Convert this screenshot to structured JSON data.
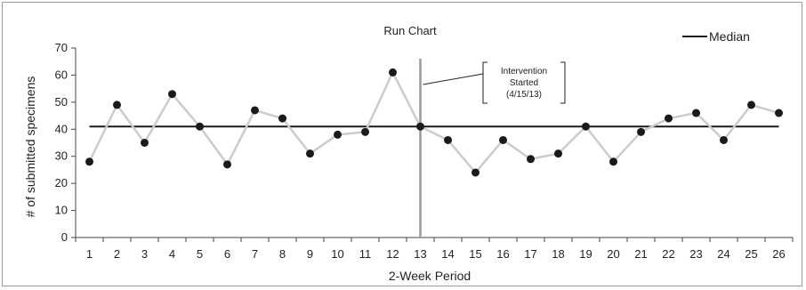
{
  "chart_data": {
    "type": "line",
    "title": "Run Chart",
    "xlabel": "2-Week Period",
    "ylabel": "# of submitted specimens",
    "x": [
      1,
      2,
      3,
      4,
      5,
      6,
      7,
      8,
      9,
      10,
      11,
      12,
      13,
      14,
      15,
      16,
      17,
      18,
      19,
      20,
      21,
      22,
      23,
      24,
      25,
      26
    ],
    "ylim": [
      0,
      70
    ],
    "yticks": [
      0,
      10,
      20,
      30,
      40,
      50,
      60,
      70
    ],
    "series": [
      {
        "values": [
          28,
          49,
          35,
          53,
          41,
          27,
          47,
          44,
          31,
          38,
          39,
          61,
          41,
          36,
          24,
          36,
          29,
          31,
          41,
          28,
          39,
          44,
          46,
          36,
          49,
          46
        ],
        "color": "#cccccc",
        "marker_color": "#1a1a1a"
      },
      {
        "name": "Median",
        "values": [
          41,
          41,
          41,
          41,
          41,
          41,
          41,
          41,
          41,
          41,
          41,
          41,
          41,
          41,
          41,
          41,
          41,
          41,
          41,
          41,
          41,
          41,
          41,
          41,
          41,
          41
        ],
        "color": "#1a1a1a"
      }
    ],
    "legend": {
      "position": "top-right",
      "entries": [
        "Median"
      ]
    },
    "intervention": {
      "x": 13,
      "color": "#9a9a9a",
      "label_lines": [
        "Intervention",
        "Started",
        "(4/15/13)"
      ]
    },
    "grid": false
  }
}
